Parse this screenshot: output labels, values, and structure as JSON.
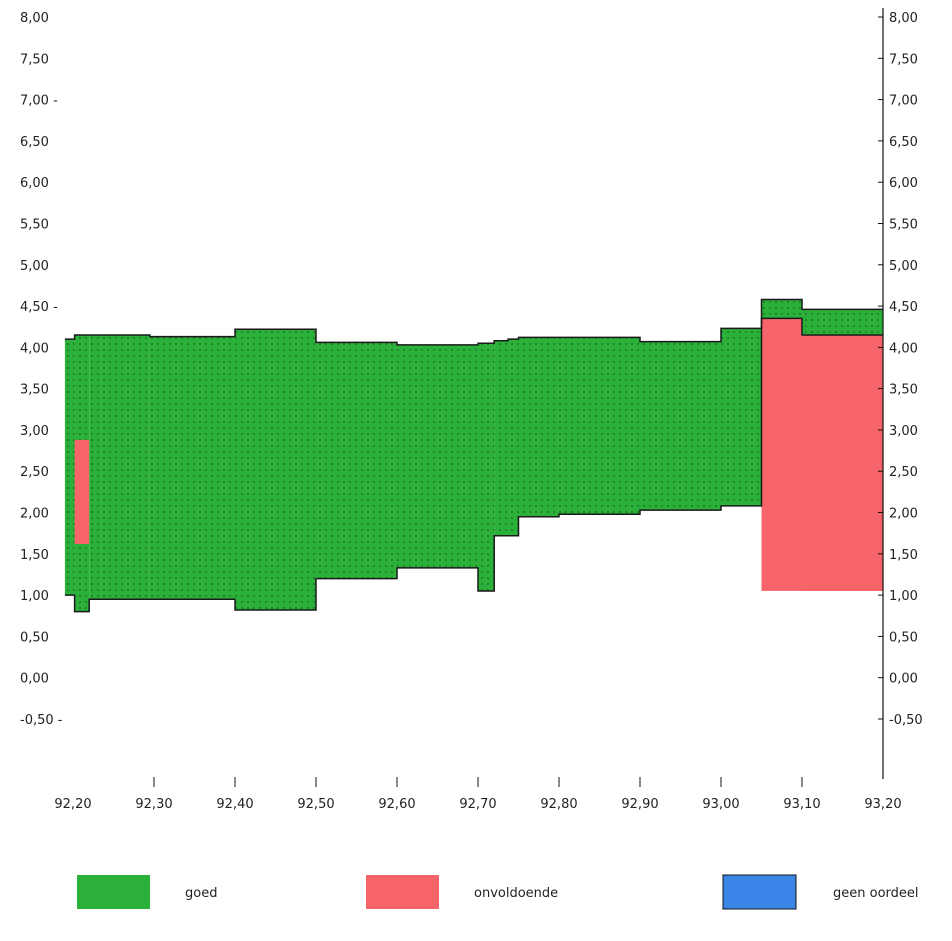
{
  "chart_data": {
    "type": "area",
    "title": "",
    "xlabel": "",
    "ylabel": "",
    "xlim": [
      92.2,
      93.2
    ],
    "ylim": [
      -0.5,
      8.0
    ],
    "left_axis_ticks": [
      {
        "value": 8.0,
        "label": "8,00"
      },
      {
        "value": 7.5,
        "label": "7,50"
      },
      {
        "value": 7.0,
        "label": "7,00 -"
      },
      {
        "value": 6.5,
        "label": "6,50"
      },
      {
        "value": 6.0,
        "label": "6,00"
      },
      {
        "value": 5.5,
        "label": "5,50"
      },
      {
        "value": 5.0,
        "label": "5,00"
      },
      {
        "value": 4.5,
        "label": "4,50 -"
      },
      {
        "value": 4.0,
        "label": "4,00"
      },
      {
        "value": 3.5,
        "label": "3,50"
      },
      {
        "value": 3.0,
        "label": "3,00"
      },
      {
        "value": 2.5,
        "label": "2,50"
      },
      {
        "value": 2.0,
        "label": "2,00"
      },
      {
        "value": 1.5,
        "label": "1,50"
      },
      {
        "value": 1.0,
        "label": "1,00"
      },
      {
        "value": 0.5,
        "label": "0,50"
      },
      {
        "value": 0.0,
        "label": "0,00"
      },
      {
        "value": -0.5,
        "label": "-0,50 -"
      }
    ],
    "right_axis_ticks": [
      {
        "value": 8.0,
        "label": "8,00"
      },
      {
        "value": 7.5,
        "label": "7,50"
      },
      {
        "value": 7.0,
        "label": "7,00"
      },
      {
        "value": 6.5,
        "label": "6,50"
      },
      {
        "value": 6.0,
        "label": "6,00"
      },
      {
        "value": 5.5,
        "label": "5,50"
      },
      {
        "value": 5.0,
        "label": "5,00"
      },
      {
        "value": 4.5,
        "label": "4,50"
      },
      {
        "value": 4.0,
        "label": "4,00"
      },
      {
        "value": 3.5,
        "label": "3,50"
      },
      {
        "value": 3.0,
        "label": "3,00"
      },
      {
        "value": 2.5,
        "label": "2,50"
      },
      {
        "value": 2.0,
        "label": "2,00"
      },
      {
        "value": 1.5,
        "label": "1,50"
      },
      {
        "value": 1.0,
        "label": "1,00"
      },
      {
        "value": 0.5,
        "label": "0,50"
      },
      {
        "value": 0.0,
        "label": "0,00"
      },
      {
        "value": -0.5,
        "label": "-0,50"
      }
    ],
    "x_ticks": [
      {
        "value": 92.2,
        "label": "92,20"
      },
      {
        "value": 92.3,
        "label": "92,30"
      },
      {
        "value": 92.4,
        "label": "92,40"
      },
      {
        "value": 92.5,
        "label": "92,50"
      },
      {
        "value": 92.6,
        "label": "92,60"
      },
      {
        "value": 92.7,
        "label": "92,70"
      },
      {
        "value": 92.8,
        "label": "92,80"
      },
      {
        "value": 92.9,
        "label": "92,90"
      },
      {
        "value": 93.0,
        "label": "93,00"
      },
      {
        "value": 93.1,
        "label": "93,10"
      },
      {
        "value": 93.2,
        "label": "93,20"
      }
    ],
    "legend": [
      {
        "key": "goed",
        "label": "goed",
        "color": "#2bb03a"
      },
      {
        "key": "onvoldoende",
        "label": "onvoldoende",
        "color": "#f7656a"
      },
      {
        "key": "geen_oordeel",
        "label": "geen oordeel",
        "color": "#3a86e8"
      }
    ],
    "legend_placement": "bottom",
    "grid": false,
    "series": [
      {
        "name": "goed",
        "segments": [
          {
            "x0": 92.19,
            "x1": 92.202,
            "y0": 1.0,
            "y1": 4.1
          },
          {
            "x0": 92.202,
            "x1": 92.22,
            "y0": 0.8,
            "y1": 4.15
          },
          {
            "x0": 92.22,
            "x1": 92.235,
            "y0": 0.95,
            "y1": 4.15
          },
          {
            "x0": 92.235,
            "x1": 92.295,
            "y0": 0.95,
            "y1": 4.15
          },
          {
            "x0": 92.295,
            "x1": 92.4,
            "y0": 0.95,
            "y1": 4.13
          },
          {
            "x0": 92.4,
            "x1": 92.5,
            "y0": 0.82,
            "y1": 4.22
          },
          {
            "x0": 92.5,
            "x1": 92.6,
            "y0": 1.2,
            "y1": 4.06
          },
          {
            "x0": 92.6,
            "x1": 92.7,
            "y0": 1.33,
            "y1": 4.03
          },
          {
            "x0": 92.7,
            "x1": 92.72,
            "y0": 1.05,
            "y1": 4.05
          },
          {
            "x0": 92.72,
            "x1": 92.737,
            "y0": 1.72,
            "y1": 4.08
          },
          {
            "x0": 92.737,
            "x1": 92.75,
            "y0": 1.72,
            "y1": 4.1
          },
          {
            "x0": 92.75,
            "x1": 92.8,
            "y0": 1.95,
            "y1": 4.12
          },
          {
            "x0": 92.8,
            "x1": 92.9,
            "y0": 1.98,
            "y1": 4.12
          },
          {
            "x0": 92.9,
            "x1": 93.0,
            "y0": 2.03,
            "y1": 4.07
          },
          {
            "x0": 93.0,
            "x1": 93.05,
            "y0": 2.08,
            "y1": 4.23
          },
          {
            "x0": 93.05,
            "x1": 93.1,
            "y0": 4.35,
            "y1": 4.58
          },
          {
            "x0": 93.1,
            "x1": 93.2,
            "y0": 4.15,
            "y1": 4.46
          }
        ]
      },
      {
        "name": "onvoldoende",
        "segments": [
          {
            "x0": 92.202,
            "x1": 92.22,
            "y0": 1.62,
            "y1": 2.88
          },
          {
            "x0": 93.05,
            "x1": 93.1,
            "y0": 1.05,
            "y1": 4.35
          },
          {
            "x0": 93.1,
            "x1": 93.2,
            "y0": 1.05,
            "y1": 4.15
          }
        ]
      },
      {
        "name": "geen oordeel",
        "segments": []
      }
    ]
  }
}
